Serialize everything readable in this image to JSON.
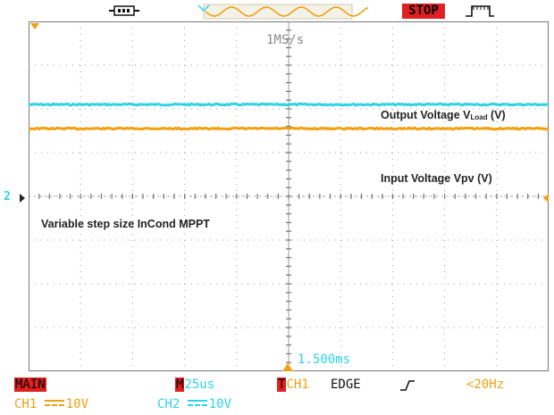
{
  "top_bar": {
    "status": "STOP",
    "icons": [
      "usb-icon",
      "waveform-memory-icon",
      "trigger-pulse-icon"
    ]
  },
  "screen": {
    "sample_rate": "1MS/s",
    "annotations": {
      "output_voltage_prefix": "Output Voltage V",
      "output_voltage_sub": "Load",
      "output_voltage_suffix": " (V)",
      "input_voltage": "Input Voltage Vpv (V)",
      "method": "Variable step size InCond MPPT"
    },
    "ch2_marker": "2",
    "trigger_position": "1.500ms"
  },
  "status_bar": {
    "mode": "MAIN",
    "timebase_prefix": "M",
    "timebase": "25us",
    "trigger_prefix": "T",
    "trigger_source": "CH1",
    "trigger_type": "EDGE",
    "trigger_freq": "<20Hz",
    "ch1_label": "CH1",
    "ch1_scale": "10V",
    "ch2_label": "CH2",
    "ch2_scale": "10V"
  },
  "colors": {
    "ch1": "#f0a010",
    "ch2": "#2ed3e6",
    "alert": "#e02020",
    "grid": "#9a9a9a"
  },
  "traces": {
    "ch2_output_level_div": 2.1,
    "ch1_input_level_div": 1.55
  }
}
